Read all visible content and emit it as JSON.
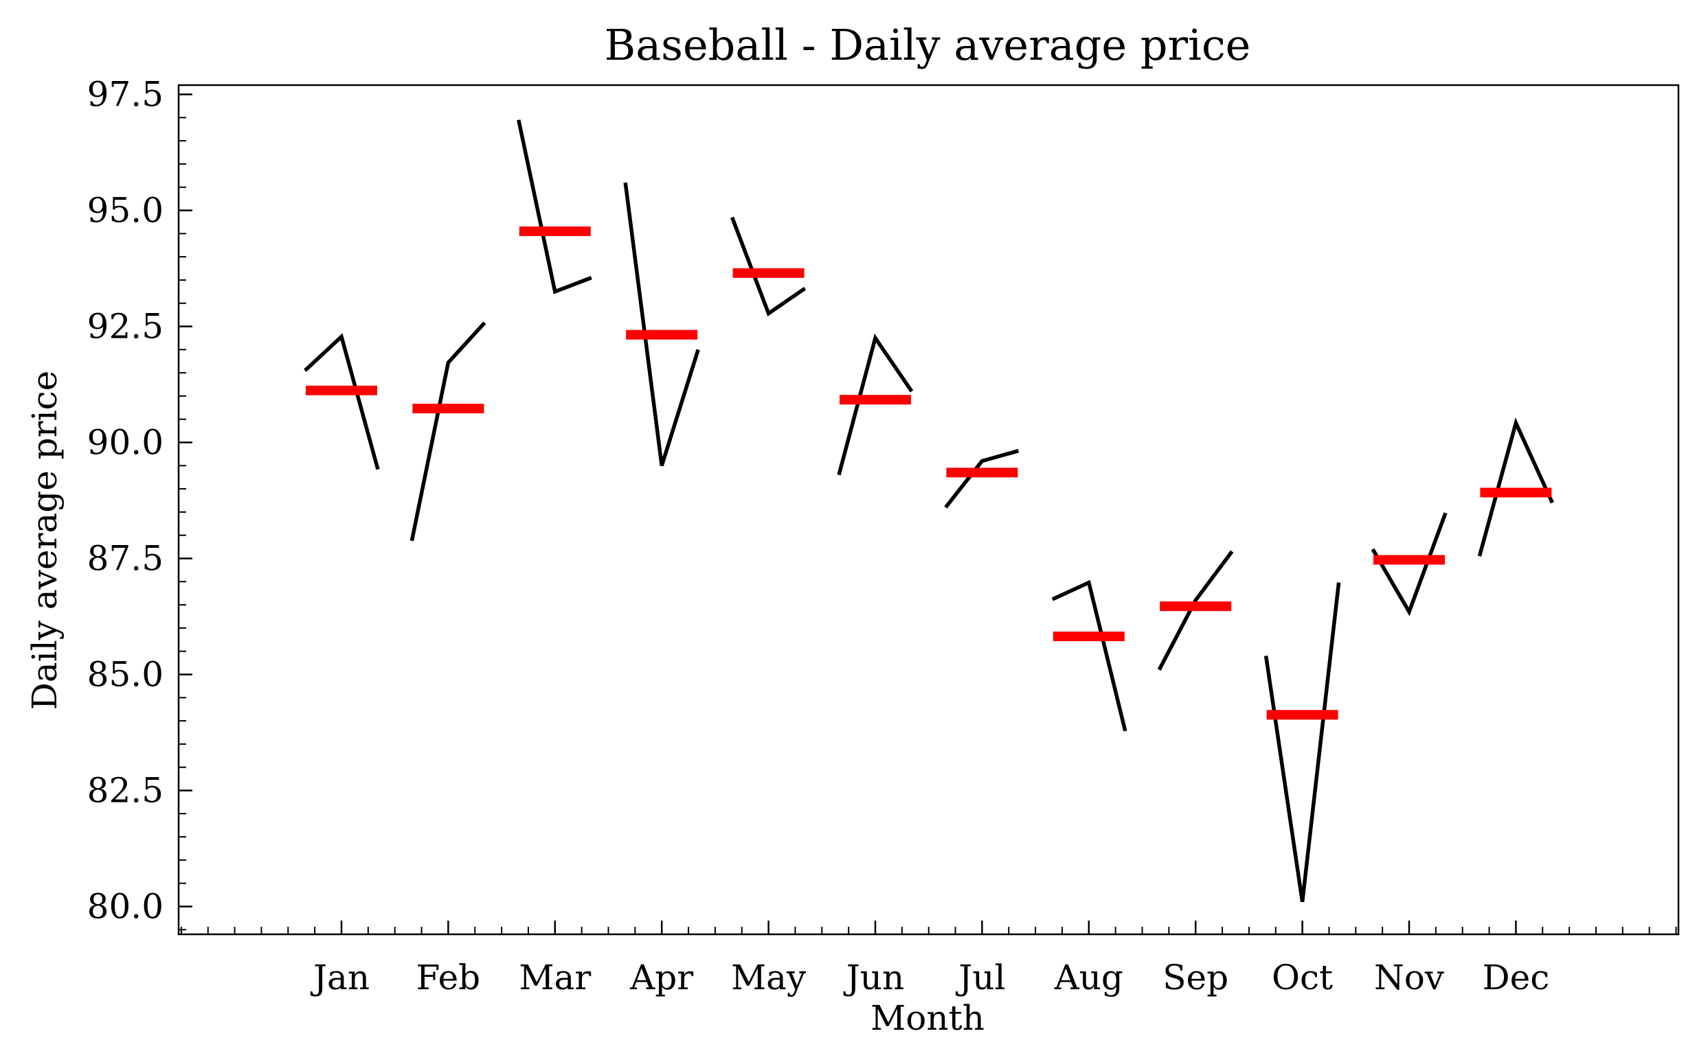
{
  "chart_data": {
    "type": "line",
    "title": "Baseball - Daily average price",
    "xlabel": "Month",
    "ylabel": "Daily average price",
    "categories": [
      "Jan",
      "Feb",
      "Mar",
      "Apr",
      "May",
      "Jun",
      "Jul",
      "Aug",
      "Sep",
      "Oct",
      "Nov",
      "Dec"
    ],
    "ylim": [
      79.4,
      97.7
    ],
    "yticks": [
      "80.0",
      "82.5",
      "85.0",
      "87.5",
      "90.0",
      "92.5",
      "95.0",
      "97.5"
    ],
    "ytick_values": [
      80.0,
      82.5,
      85.0,
      87.5,
      90.0,
      92.5,
      95.0,
      97.5
    ],
    "grid": false,
    "series": [
      {
        "values": [
          [
            91.55,
            92.28,
            89.42
          ],
          [
            87.88,
            91.72,
            92.58
          ],
          [
            96.95,
            93.25,
            93.55
          ],
          [
            95.6,
            89.5,
            92.0
          ],
          [
            94.85,
            92.78,
            93.32
          ],
          [
            89.3,
            92.25,
            91.1
          ],
          [
            88.6,
            89.6,
            89.82
          ],
          [
            86.62,
            86.98,
            83.78
          ],
          [
            85.1,
            86.6,
            87.65
          ],
          [
            85.4,
            80.1,
            86.98
          ],
          [
            87.7,
            86.35,
            88.48
          ],
          [
            87.55,
            90.42,
            88.7
          ]
        ]
      },
      {
        "values": [
          91.12,
          90.73,
          94.55,
          92.32,
          93.65,
          90.92,
          89.35,
          85.82,
          86.47,
          84.13,
          87.47,
          88.92
        ]
      }
    ],
    "colors": {
      "series_line": "#000000",
      "mean_bar": "#ff0000",
      "frame": "#000000"
    }
  }
}
